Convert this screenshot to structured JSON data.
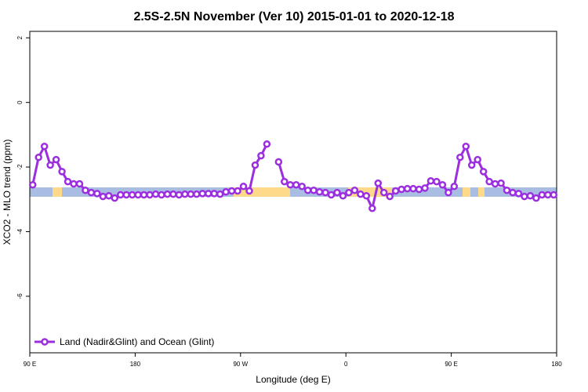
{
  "chart_data": {
    "type": "line",
    "title": "2.5S-2.5N November (Ver 10)   2015-01-01 to 2020-12-18",
    "x_label": "Longitude (deg E)",
    "y_label": "XCO2 - MLO trend (ppm)",
    "xlim": [
      90,
      540
    ],
    "ylim": [
      -7.75,
      2.2
    ],
    "xticks": [
      {
        "value": 90,
        "label": "90 E"
      },
      180,
      {
        "value": 270,
        "label": "90 W"
      },
      {
        "value": 360,
        "label": "0"
      },
      {
        "value": 450,
        "label": "90 E"
      },
      {
        "value": 540,
        "label": "180"
      }
    ],
    "yticks": [
      2,
      0,
      -2,
      -4,
      -6
    ],
    "legend": "bottom-left",
    "series": [
      {
        "name": "Land (Nadir&Glint) and Ocean (Glint)",
        "color": "#9b2fe0",
        "x": [
          92.5,
          97.5,
          102.5,
          107.5,
          112.5,
          117.5,
          122.5,
          127.5,
          132.5,
          137.5,
          142.5,
          147.5,
          152.5,
          157.5,
          162.5,
          167.5,
          172.5,
          177.5,
          182.5,
          187.5,
          192.5,
          197.5,
          202.5,
          207.5,
          212.5,
          217.5,
          222.5,
          227.5,
          232.5,
          237.5,
          242.5,
          247.5,
          252.5,
          257.5,
          262.5,
          267.5,
          272.5,
          277.5,
          282.5,
          287.5,
          292.5,
          297.5,
          302.5,
          307.5,
          312.5,
          317.5,
          322.5,
          327.5,
          332.5,
          337.5,
          342.5,
          347.5,
          352.5,
          357.5,
          362.5,
          367.5,
          372.5,
          377.5,
          382.5,
          387.5,
          392.5,
          397.5,
          402.5,
          407.5,
          412.5,
          417.5,
          422.5,
          427.5,
          432.5,
          437.5,
          442.5,
          447.5,
          452.5,
          457.5,
          462.5,
          467.5,
          472.5,
          477.5,
          482.5,
          487.5,
          492.5,
          497.5,
          502.5,
          507.5,
          512.5,
          517.5,
          522.5,
          527.5,
          532.5,
          537.5
        ],
        "values": [
          -2.55,
          -1.7,
          -1.36,
          -1.94,
          -1.77,
          -2.14,
          -2.45,
          -2.52,
          -2.52,
          -2.72,
          -2.79,
          -2.82,
          -2.91,
          -2.89,
          -2.96,
          -2.86,
          -2.86,
          -2.86,
          -2.86,
          -2.86,
          -2.86,
          -2.84,
          -2.86,
          -2.84,
          -2.84,
          -2.86,
          -2.84,
          -2.84,
          -2.84,
          -2.82,
          -2.82,
          -2.82,
          -2.84,
          -2.77,
          -2.74,
          -2.74,
          -2.6,
          -2.74,
          -1.94,
          -1.65,
          -1.29,
          null,
          -1.84,
          -2.45,
          -2.55,
          -2.55,
          -2.6,
          -2.72,
          -2.72,
          -2.77,
          -2.79,
          -2.86,
          -2.79,
          -2.89,
          -2.79,
          -2.72,
          -2.84,
          -2.89,
          -3.28,
          -2.5,
          -2.79,
          -2.91,
          -2.74,
          -2.69,
          -2.67,
          -2.67,
          -2.69,
          -2.65,
          -2.43,
          -2.45,
          -2.55,
          -2.79,
          -2.6,
          -1.7,
          -1.36,
          -1.94,
          -1.77,
          -2.14,
          -2.45,
          -2.52,
          -2.5,
          -2.72,
          -2.79,
          -2.82,
          -2.91,
          -2.89,
          -2.96,
          -2.86,
          -2.86,
          -2.86
        ]
      }
    ]
  }
}
